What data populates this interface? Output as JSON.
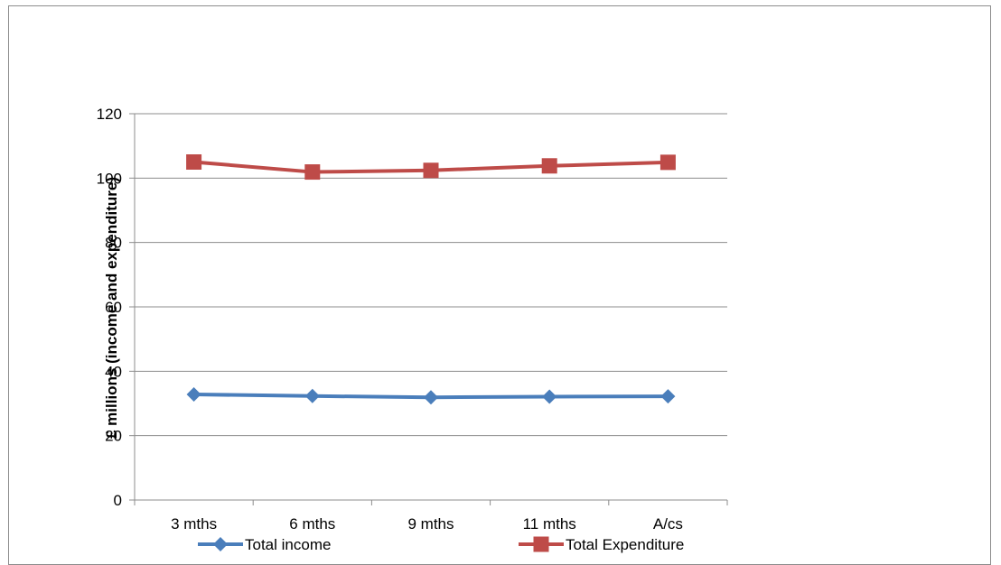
{
  "chart_data": {
    "type": "line",
    "categories": [
      "3 mths",
      "6 mths",
      "9 mths",
      "11 mths",
      "A/cs"
    ],
    "series": [
      {
        "name": "Total income",
        "values": [
          32.8,
          32.3,
          31.9,
          32.1,
          32.2
        ],
        "color": "#4a7ebb",
        "marker": "diamond"
      },
      {
        "name": "Total Expenditure",
        "values": [
          105.0,
          101.9,
          102.4,
          103.8,
          104.9
        ],
        "color": "#be4b48",
        "marker": "square"
      }
    ],
    "ylabel": "£ millions (income and expenditure)",
    "ylim": [
      0,
      120
    ],
    "yticks": [
      0,
      20,
      40,
      60,
      80,
      100,
      120
    ],
    "grid": "horizontal",
    "legend": "bottom"
  }
}
